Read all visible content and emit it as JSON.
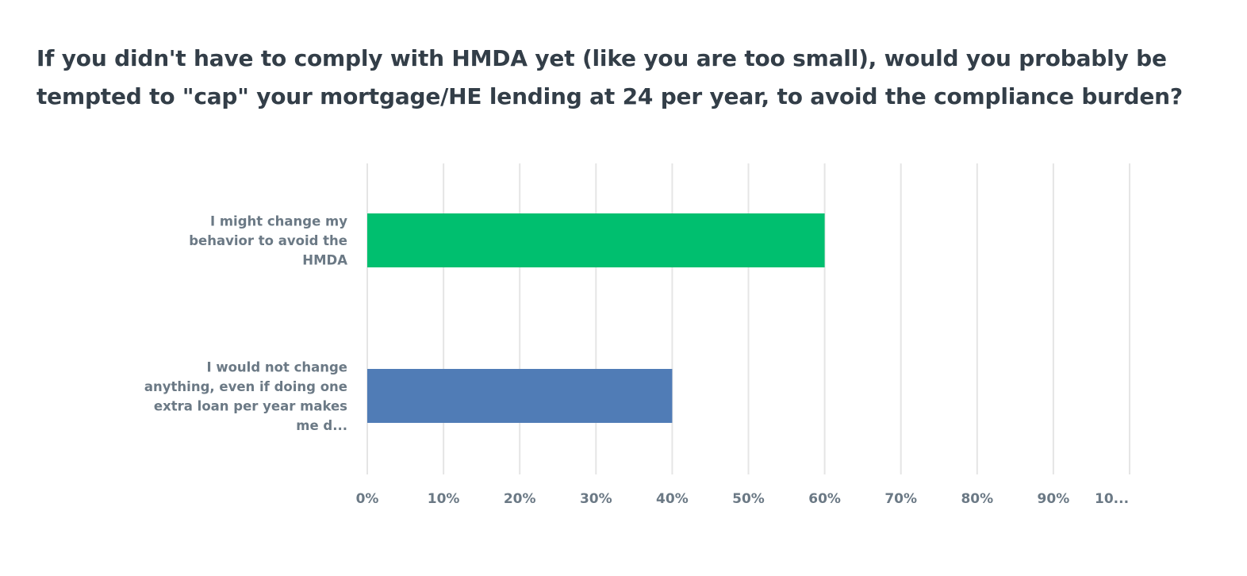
{
  "chart_data": {
    "type": "bar",
    "orientation": "horizontal",
    "title": "If you didn't have to comply with HMDA yet (like you are too small), would you probably be tempted to \"cap\" your mortgage/HE lending at 24 per year, to avoid the compliance burden?",
    "categories": [
      [
        "I might change my",
        "behavior to avoid the",
        "HMDA"
      ],
      [
        "I would not change",
        "anything, even if doing one",
        "extra loan per year makes",
        "me d..."
      ]
    ],
    "values": [
      60,
      40
    ],
    "colors": [
      "#00bf6f",
      "#507cb6"
    ],
    "xlabel": "",
    "ylabel": "",
    "xlim": [
      0,
      100
    ],
    "x_ticks": [
      "0%",
      "10%",
      "20%",
      "30%",
      "40%",
      "50%",
      "60%",
      "70%",
      "80%",
      "90%",
      "10..."
    ],
    "grid": true,
    "grid_color": "#e5e5e5"
  }
}
